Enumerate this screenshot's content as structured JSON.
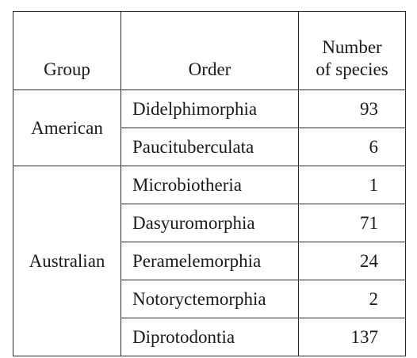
{
  "table": {
    "headers": {
      "group": "Group",
      "order": "Order",
      "number_line1": "Number",
      "number_line2": "of species"
    },
    "groups": [
      {
        "name": "American",
        "rows": [
          {
            "order": "Didelphimorphia",
            "species": "93"
          },
          {
            "order": "Paucituberculata",
            "species": "6"
          }
        ]
      },
      {
        "name": "Australian",
        "rows": [
          {
            "order": "Microbiotheria",
            "species": "1"
          },
          {
            "order": "Dasyuromorphia",
            "species": "71"
          },
          {
            "order": "Peramelemorphia",
            "species": "24"
          },
          {
            "order": "Notoryctemorphia",
            "species": "2"
          },
          {
            "order": "Diprotodontia",
            "species": "137"
          }
        ]
      }
    ]
  }
}
